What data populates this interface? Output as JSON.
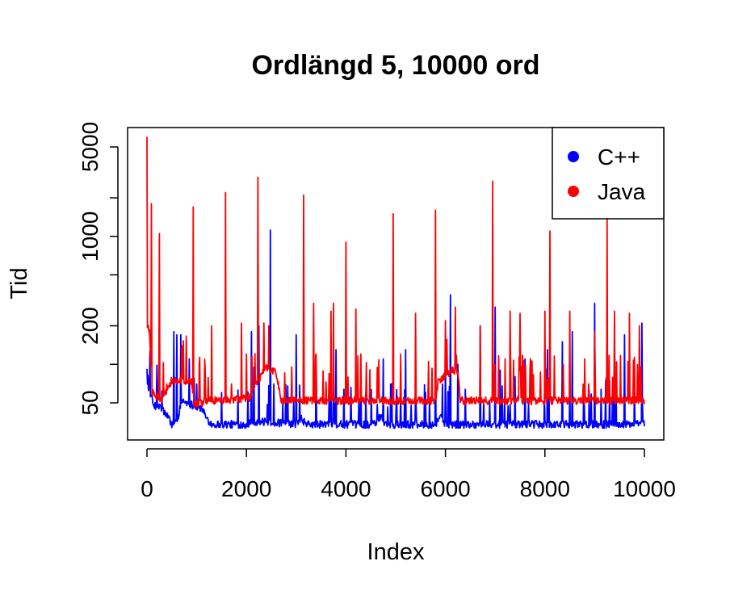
{
  "chart_data": {
    "type": "line",
    "title": "Ordlängd 5, 10000 ord",
    "xlabel": "Index",
    "ylabel": "Tid",
    "xlim": [
      0,
      10000
    ],
    "y_scale": "log",
    "ylim": [
      30,
      6000
    ],
    "x_ticks": [
      {
        "value": 0,
        "label": "0"
      },
      {
        "value": 2000,
        "label": "2000"
      },
      {
        "value": 4000,
        "label": "4000"
      },
      {
        "value": 6000,
        "label": "6000"
      },
      {
        "value": 8000,
        "label": "8000"
      },
      {
        "value": 10000,
        "label": "10000"
      }
    ],
    "y_ticks": [
      {
        "value": 50,
        "label": "50"
      },
      {
        "value": 100,
        "label": ""
      },
      {
        "value": 200,
        "label": "200"
      },
      {
        "value": 500,
        "label": ""
      },
      {
        "value": 1000,
        "label": "1000"
      },
      {
        "value": 2000,
        "label": ""
      },
      {
        "value": 5000,
        "label": "5000"
      }
    ],
    "legend_position": "top-right",
    "series": [
      {
        "name": "C++",
        "color": "#0000ff",
        "baseline": [
          [
            0,
            70
          ],
          [
            60,
            62
          ],
          [
            120,
            48
          ],
          [
            250,
            47
          ],
          [
            400,
            40
          ],
          [
            500,
            34
          ],
          [
            600,
            36
          ],
          [
            700,
            52
          ],
          [
            1000,
            47
          ],
          [
            1100,
            45
          ],
          [
            1200,
            38
          ],
          [
            1300,
            34
          ],
          [
            2000,
            34
          ],
          [
            2100,
            36
          ],
          [
            2600,
            35
          ],
          [
            3000,
            34
          ],
          [
            3100,
            38
          ],
          [
            3200,
            34
          ],
          [
            4600,
            34
          ],
          [
            4700,
            40
          ],
          [
            4800,
            34
          ],
          [
            5800,
            34
          ],
          [
            5900,
            40
          ],
          [
            6000,
            34
          ],
          [
            10000,
            34
          ]
        ],
        "spikes": [
          [
            20,
            82
          ],
          [
            100,
            58
          ],
          [
            300,
            62
          ],
          [
            540,
            180
          ],
          [
            600,
            170
          ],
          [
            680,
            170
          ],
          [
            850,
            110
          ],
          [
            1000,
            70
          ],
          [
            1500,
            60
          ],
          [
            2100,
            180
          ],
          [
            2150,
            95
          ],
          [
            2250,
            200
          ],
          [
            2480,
            1120
          ],
          [
            2550,
            70
          ],
          [
            3000,
            170
          ],
          [
            3400,
            100
          ],
          [
            3700,
            120
          ],
          [
            3800,
            130
          ],
          [
            4300,
            100
          ],
          [
            4400,
            60
          ],
          [
            4750,
            110
          ],
          [
            4900,
            70
          ],
          [
            5200,
            130
          ],
          [
            5400,
            60
          ],
          [
            5600,
            60
          ],
          [
            5800,
            380
          ],
          [
            6000,
            110
          ],
          [
            6100,
            350
          ],
          [
            6250,
            100
          ],
          [
            6700,
            200
          ],
          [
            7000,
            280
          ],
          [
            7100,
            90
          ],
          [
            7400,
            80
          ],
          [
            7600,
            110
          ],
          [
            8050,
            130
          ],
          [
            8350,
            150
          ],
          [
            8550,
            180
          ],
          [
            9000,
            300
          ],
          [
            9400,
            160
          ],
          [
            9600,
            170
          ],
          [
            9800,
            80
          ],
          [
            9950,
            210
          ]
        ]
      },
      {
        "name": "Java",
        "color": "#ff0000",
        "baseline": [
          [
            0,
            210
          ],
          [
            50,
            180
          ],
          [
            100,
            60
          ],
          [
            300,
            52
          ],
          [
            500,
            75
          ],
          [
            550,
            75
          ],
          [
            900,
            75
          ],
          [
            950,
            50
          ],
          [
            1100,
            50
          ],
          [
            1200,
            52
          ],
          [
            2050,
            54
          ],
          [
            2200,
            72
          ],
          [
            2300,
            82
          ],
          [
            2400,
            95
          ],
          [
            2500,
            90
          ],
          [
            2600,
            85
          ],
          [
            2700,
            52
          ],
          [
            3000,
            52
          ],
          [
            5800,
            52
          ],
          [
            5850,
            72
          ],
          [
            5950,
            80
          ],
          [
            6050,
            82
          ],
          [
            6100,
            90
          ],
          [
            6250,
            90
          ],
          [
            6300,
            52
          ],
          [
            10000,
            52
          ]
        ],
        "spikes": [
          [
            0,
            6000
          ],
          [
            90,
            1800
          ],
          [
            250,
            1050
          ],
          [
            400,
            70
          ],
          [
            700,
            140
          ],
          [
            930,
            1700
          ],
          [
            1050,
            100
          ],
          [
            1300,
            200
          ],
          [
            1580,
            2200
          ],
          [
            1900,
            210
          ],
          [
            2000,
            120
          ],
          [
            2230,
            2900
          ],
          [
            2350,
            210
          ],
          [
            2450,
            200
          ],
          [
            3150,
            2100
          ],
          [
            3350,
            300
          ],
          [
            3400,
            120
          ],
          [
            3700,
            260
          ],
          [
            3750,
            300
          ],
          [
            4000,
            900
          ],
          [
            4200,
            270
          ],
          [
            4300,
            120
          ],
          [
            4950,
            1500
          ],
          [
            5100,
            120
          ],
          [
            5400,
            250
          ],
          [
            5800,
            1600
          ],
          [
            6000,
            220
          ],
          [
            6200,
            280
          ],
          [
            6700,
            200
          ],
          [
            6950,
            2700
          ],
          [
            7200,
            110
          ],
          [
            7300,
            260
          ],
          [
            7500,
            250
          ],
          [
            8000,
            260
          ],
          [
            8100,
            1100
          ],
          [
            8500,
            260
          ],
          [
            8800,
            110
          ],
          [
            9000,
            180
          ],
          [
            9250,
            1400
          ],
          [
            9400,
            260
          ],
          [
            9700,
            250
          ],
          [
            9900,
            200
          ]
        ]
      }
    ]
  }
}
